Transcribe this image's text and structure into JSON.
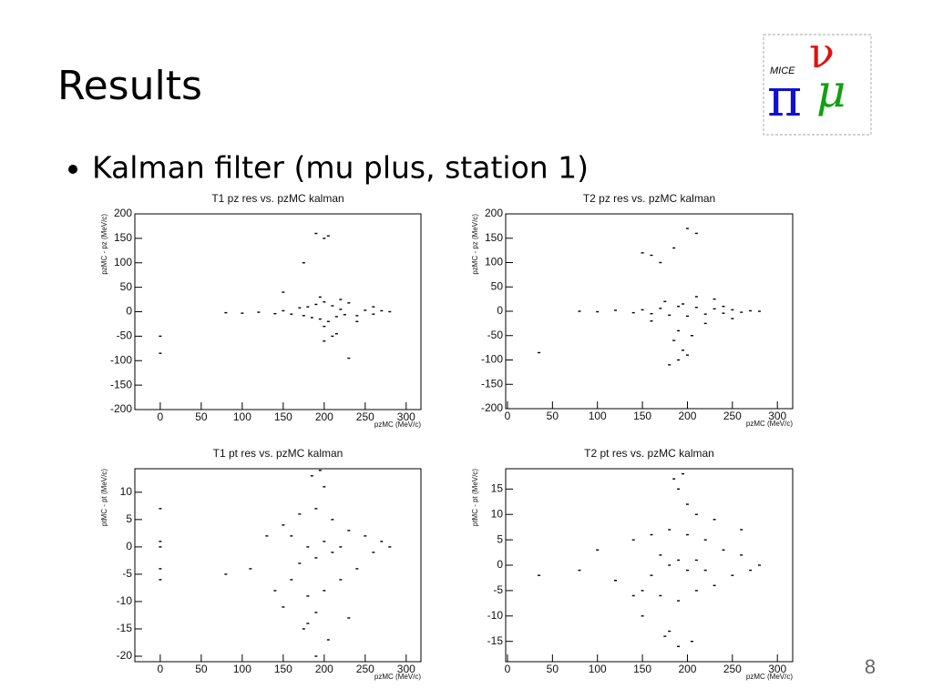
{
  "title": "Results",
  "bullet": "Kalman filter (mu plus, station 1)",
  "page_number": "8",
  "logo": {
    "text": "MICE",
    "symbols": [
      "π",
      "ν",
      "μ"
    ]
  },
  "chart_data": [
    {
      "type": "scatter",
      "title": "T1 pz res vs. pzMC kalman",
      "x_label": "pzMC (MeV/c)",
      "y_label": "pzMC - pz (MeV/c)",
      "color": "#000000",
      "xlim": [
        -31,
        318
      ],
      "xticks": [
        0,
        50,
        100,
        150,
        200,
        250,
        300
      ],
      "ylim": [
        -200,
        200
      ],
      "yticks": [
        -200,
        -150,
        -100,
        -50,
        0,
        50,
        100,
        150,
        200
      ],
      "x": [
        0,
        0,
        80,
        100,
        120,
        140,
        150,
        160,
        170,
        175,
        180,
        185,
        190,
        195,
        200,
        205,
        210,
        215,
        220,
        225,
        230,
        240,
        250,
        260,
        270,
        280,
        190,
        200,
        205,
        210,
        175,
        200,
        215,
        230,
        150,
        195,
        200,
        220,
        240,
        260
      ],
      "y": [
        -50,
        -85,
        -2,
        -3,
        -1,
        -4,
        2,
        -5,
        8,
        -8,
        10,
        -12,
        15,
        -15,
        20,
        -20,
        12,
        -10,
        5,
        -6,
        18,
        -8,
        3,
        -5,
        2,
        0,
        160,
        150,
        155,
        -50,
        100,
        -60,
        -45,
        -95,
        40,
        30,
        -30,
        25,
        -20,
        10
      ]
    },
    {
      "type": "scatter",
      "title": "T2 pz res vs. pzMC kalman",
      "x_label": "pzMC (MeV/c)",
      "y_label": "pzMC - pz (MeV/c)",
      "color": "#000000",
      "xlim": [
        -2,
        317
      ],
      "xticks": [
        0,
        50,
        100,
        150,
        200,
        250,
        300
      ],
      "ylim": [
        -200,
        200
      ],
      "yticks": [
        -200,
        -150,
        -100,
        -50,
        0,
        50,
        100,
        150,
        200
      ],
      "x": [
        35,
        80,
        100,
        120,
        140,
        150,
        160,
        170,
        180,
        190,
        200,
        210,
        220,
        230,
        240,
        250,
        260,
        270,
        280,
        150,
        160,
        170,
        180,
        190,
        200,
        210,
        185,
        195,
        205,
        175,
        230,
        250,
        185,
        200,
        190,
        240,
        160,
        210,
        220,
        195
      ],
      "y": [
        -85,
        0,
        -1,
        2,
        -3,
        3,
        -5,
        6,
        -8,
        10,
        -10,
        8,
        -6,
        5,
        -4,
        3,
        -2,
        1,
        0,
        120,
        115,
        100,
        -110,
        -100,
        170,
        160,
        -60,
        -80,
        -50,
        20,
        25,
        -15,
        130,
        -90,
        -40,
        10,
        -20,
        30,
        -25,
        15
      ]
    },
    {
      "type": "scatter",
      "title": "T1 pt res vs. pzMC kalman",
      "x_label": "pzMC (MeV/c)",
      "y_label": "ptMC - pt (MeV/c)",
      "color": "#000000",
      "xlim": [
        -31,
        318
      ],
      "xticks": [
        0,
        50,
        100,
        150,
        200,
        250,
        300
      ],
      "ylim": [
        -21,
        14.3
      ],
      "yticks": [
        -20,
        -15,
        -10,
        -5,
        0,
        5,
        10
      ],
      "x": [
        0,
        0,
        0,
        0,
        0,
        80,
        110,
        130,
        140,
        150,
        160,
        170,
        180,
        190,
        200,
        210,
        220,
        230,
        240,
        250,
        260,
        270,
        280,
        180,
        190,
        200,
        170,
        160,
        210,
        220,
        185,
        195,
        175,
        205,
        190,
        180,
        200,
        150,
        230,
        190
      ],
      "y": [
        7,
        1,
        0,
        -4,
        -6,
        -5,
        -4,
        2,
        -8,
        4,
        -6,
        6,
        -9,
        7,
        -8,
        5,
        -6,
        3,
        -4,
        2,
        -1,
        1,
        0,
        0,
        -2,
        1,
        -3,
        2,
        -1,
        0,
        13,
        14,
        -15,
        -17,
        -12,
        -14,
        11,
        -11,
        -13,
        -20
      ]
    },
    {
      "type": "scatter",
      "title": "T2 pt res vs. pzMC kalman",
      "x_label": "pzMC (MeV/c)",
      "y_label": "ptMC - pt (MeV/c)",
      "color": "#000000",
      "xlim": [
        -2,
        317
      ],
      "xticks": [
        0,
        50,
        100,
        150,
        200,
        250,
        300
      ],
      "ylim": [
        -19,
        19
      ],
      "yticks": [
        -15,
        -10,
        -5,
        0,
        5,
        10,
        15
      ],
      "x": [
        35,
        80,
        100,
        120,
        140,
        150,
        160,
        170,
        180,
        190,
        200,
        210,
        220,
        230,
        240,
        250,
        260,
        270,
        280,
        180,
        190,
        200,
        170,
        160,
        210,
        220,
        185,
        195,
        175,
        205,
        190,
        180,
        200,
        150,
        230,
        190,
        140,
        260,
        120,
        210
      ],
      "y": [
        -2,
        -1,
        3,
        -3,
        5,
        -5,
        6,
        -6,
        7,
        -7,
        6,
        -5,
        5,
        -4,
        3,
        -2,
        2,
        -1,
        0,
        0,
        1,
        -1,
        2,
        -2,
        1,
        -1,
        17,
        18,
        -14,
        -15,
        15,
        -13,
        12,
        -10,
        9,
        -16,
        -6,
        7,
        -3,
        10
      ]
    }
  ]
}
